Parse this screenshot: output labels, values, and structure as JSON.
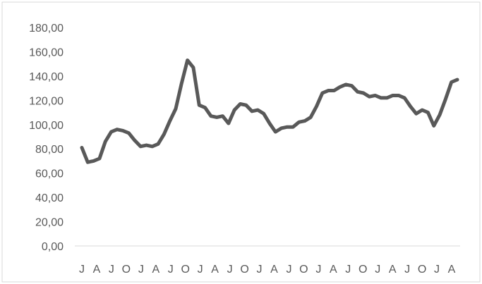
{
  "chart_data": {
    "type": "line",
    "title": "",
    "xlabel": "",
    "ylabel": "",
    "ylim": [
      0,
      180
    ],
    "y_ticks": [
      "0,00",
      "20,00",
      "40,00",
      "60,00",
      "80,00",
      "100,00",
      "120,00",
      "140,00",
      "160,00",
      "180,00"
    ],
    "x_tick_labels": [
      "J",
      "A",
      "J",
      "O",
      "J",
      "A",
      "J",
      "O",
      "J",
      "A",
      "J",
      "O",
      "J",
      "A",
      "J",
      "O",
      "J",
      "A",
      "J",
      "O",
      "J",
      "A",
      "J",
      "O",
      "J",
      "A"
    ],
    "grid": false,
    "legend": "none",
    "series": [
      {
        "color": "#595959",
        "values": [
          81,
          69,
          70,
          72,
          86,
          94,
          96,
          95,
          93,
          87,
          82,
          83,
          82,
          84,
          92,
          103,
          113,
          134,
          153,
          147,
          116,
          114,
          107,
          106,
          107,
          101,
          112,
          117,
          116,
          111,
          112,
          109,
          101,
          94,
          97,
          98,
          98,
          102,
          103,
          106,
          115,
          126,
          128,
          128,
          131,
          133,
          132,
          127,
          126,
          123,
          124,
          122,
          122,
          124,
          124,
          122,
          115,
          109,
          112,
          110,
          99,
          108,
          121,
          135,
          137
        ]
      }
    ]
  }
}
